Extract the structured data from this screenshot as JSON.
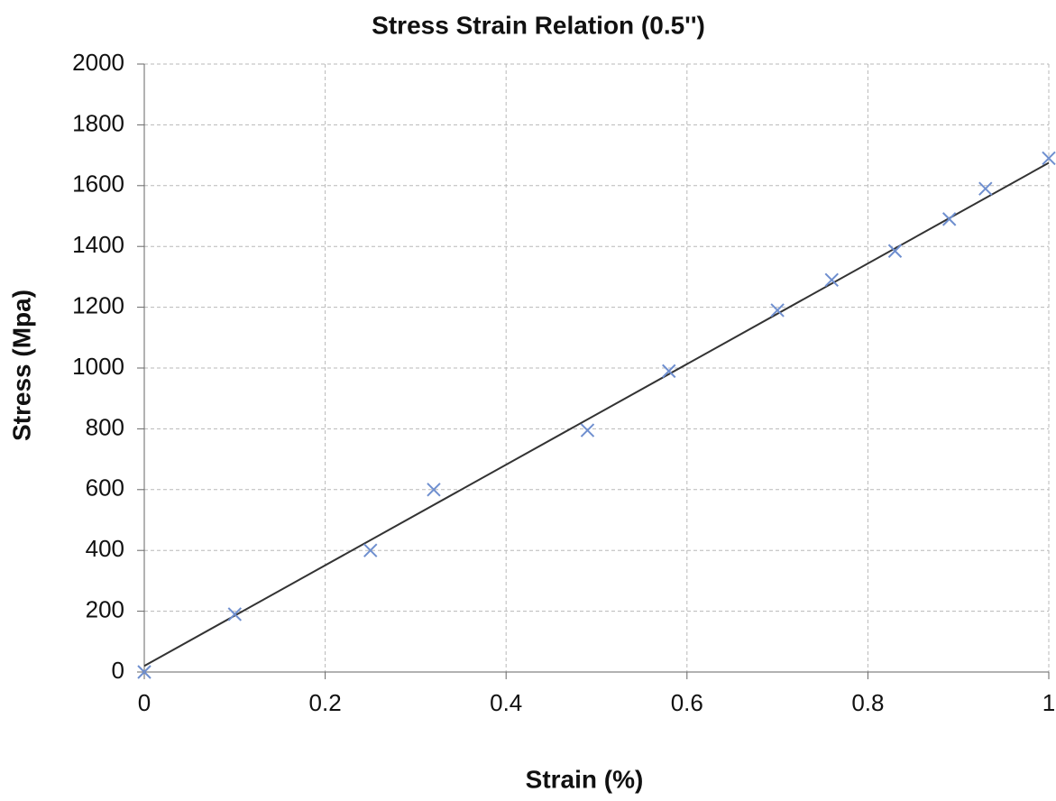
{
  "chart_data": {
    "type": "scatter",
    "title": "Stress Strain Relation (0.5'')",
    "x_label": "Strain (%)",
    "y_label": "Stress (Mpa)",
    "series": [
      {
        "x": [
          0,
          0.1,
          0.25,
          0.32,
          0.49,
          0.58,
          0.7,
          0.76,
          0.83,
          0.89,
          0.93,
          1.0
        ],
        "values": [
          0,
          190,
          400,
          600,
          795,
          990,
          1190,
          1290,
          1385,
          1490,
          1590,
          1690
        ],
        "color": "#6f8fcf",
        "marker": "x"
      }
    ],
    "trendline": {
      "x": [
        0,
        1
      ],
      "values": [
        20,
        1675
      ],
      "color": "#333333"
    },
    "xlim": [
      0,
      1
    ],
    "xticks": [
      0,
      0.2,
      0.4,
      0.6,
      0.8,
      1
    ],
    "ylim": [
      0,
      2000
    ],
    "yticks": [
      0,
      200,
      400,
      600,
      800,
      1000,
      1200,
      1400,
      1600,
      1800,
      2000
    ],
    "grid": true
  }
}
